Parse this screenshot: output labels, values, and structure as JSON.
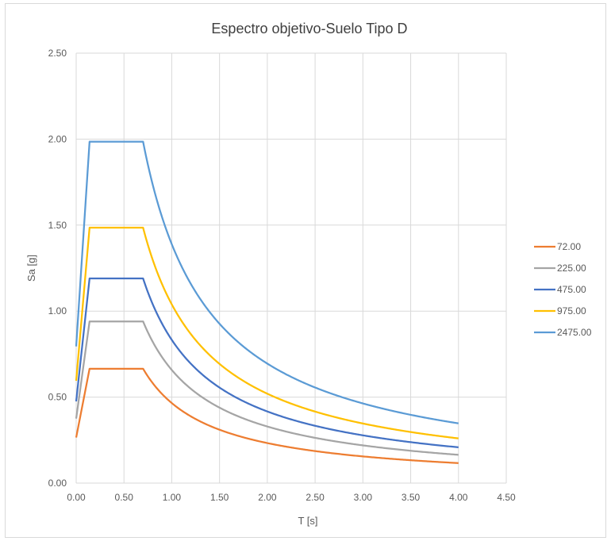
{
  "chart_data": {
    "type": "line",
    "title": "Espectro objetivo-Suelo Tipo D",
    "xlabel": "T [s]",
    "ylabel": "Sa [g]",
    "xlim": [
      0,
      4.5
    ],
    "ylim": [
      0,
      2.5
    ],
    "x_ticks": [
      "0.00",
      "0.50",
      "1.00",
      "1.50",
      "2.00",
      "2.50",
      "3.00",
      "3.50",
      "4.00",
      "4.50"
    ],
    "y_ticks": [
      "0.00",
      "0.50",
      "1.00",
      "1.50",
      "2.00",
      "2.50"
    ],
    "grid": true,
    "legend_position": "right",
    "T0": 0.14,
    "Tc": 0.7,
    "x_max_data": 4.0,
    "series": [
      {
        "name": "72.00",
        "color": "#ED7D31",
        "sa0": 0.265,
        "plateau": 0.665
      },
      {
        "name": "225.00",
        "color": "#A5A5A5",
        "sa0": 0.375,
        "plateau": 0.94
      },
      {
        "name": "475.00",
        "color": "#4472C4",
        "sa0": 0.475,
        "plateau": 1.19
      },
      {
        "name": "975.00",
        "color": "#FFC000",
        "sa0": 0.595,
        "plateau": 1.485
      },
      {
        "name": "2475.00",
        "color": "#5B9BD5",
        "sa0": 0.795,
        "plateau": 1.985
      }
    ]
  }
}
